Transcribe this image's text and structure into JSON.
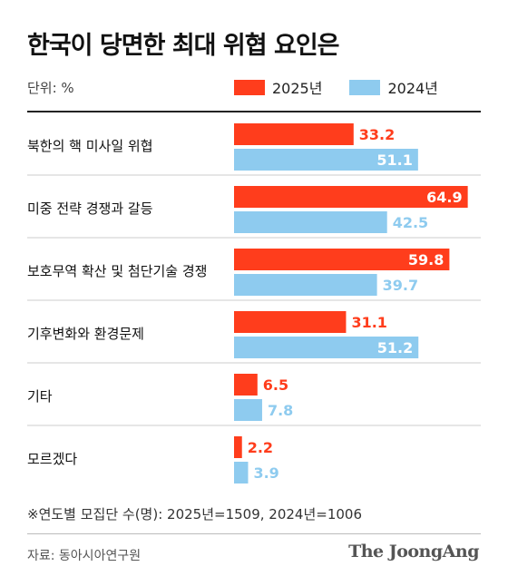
{
  "title": "한국이 당면한 최대 위협 요인은",
  "unit_label": "단위: %",
  "footnote": "※연도별 모집단 수(명): 2025년=1509, 2024년=1006",
  "source": "자료: 동아시아연구원",
  "brand": "The JoongAng",
  "colors": {
    "s2025": "#ff3d1c",
    "s2024": "#8ecbef",
    "separator": "#cccccc",
    "text": "#111111"
  },
  "chart_data": {
    "type": "bar",
    "orientation": "horizontal",
    "categories": [
      "북한의 핵 미사일 위협",
      "미중 전략 경쟁과 갈등",
      "보호무역 확산 및 첨단기술 경쟁",
      "기후변화와 환경문제",
      "기타",
      "모르겠다"
    ],
    "series": [
      {
        "name": "2025년",
        "values": [
          33.2,
          64.9,
          59.8,
          31.1,
          6.5,
          2.2
        ]
      },
      {
        "name": "2024년",
        "values": [
          51.1,
          42.5,
          39.7,
          51.2,
          7.8,
          3.9
        ]
      }
    ],
    "xlim": [
      0,
      66
    ],
    "legend": "top",
    "grid": false
  }
}
